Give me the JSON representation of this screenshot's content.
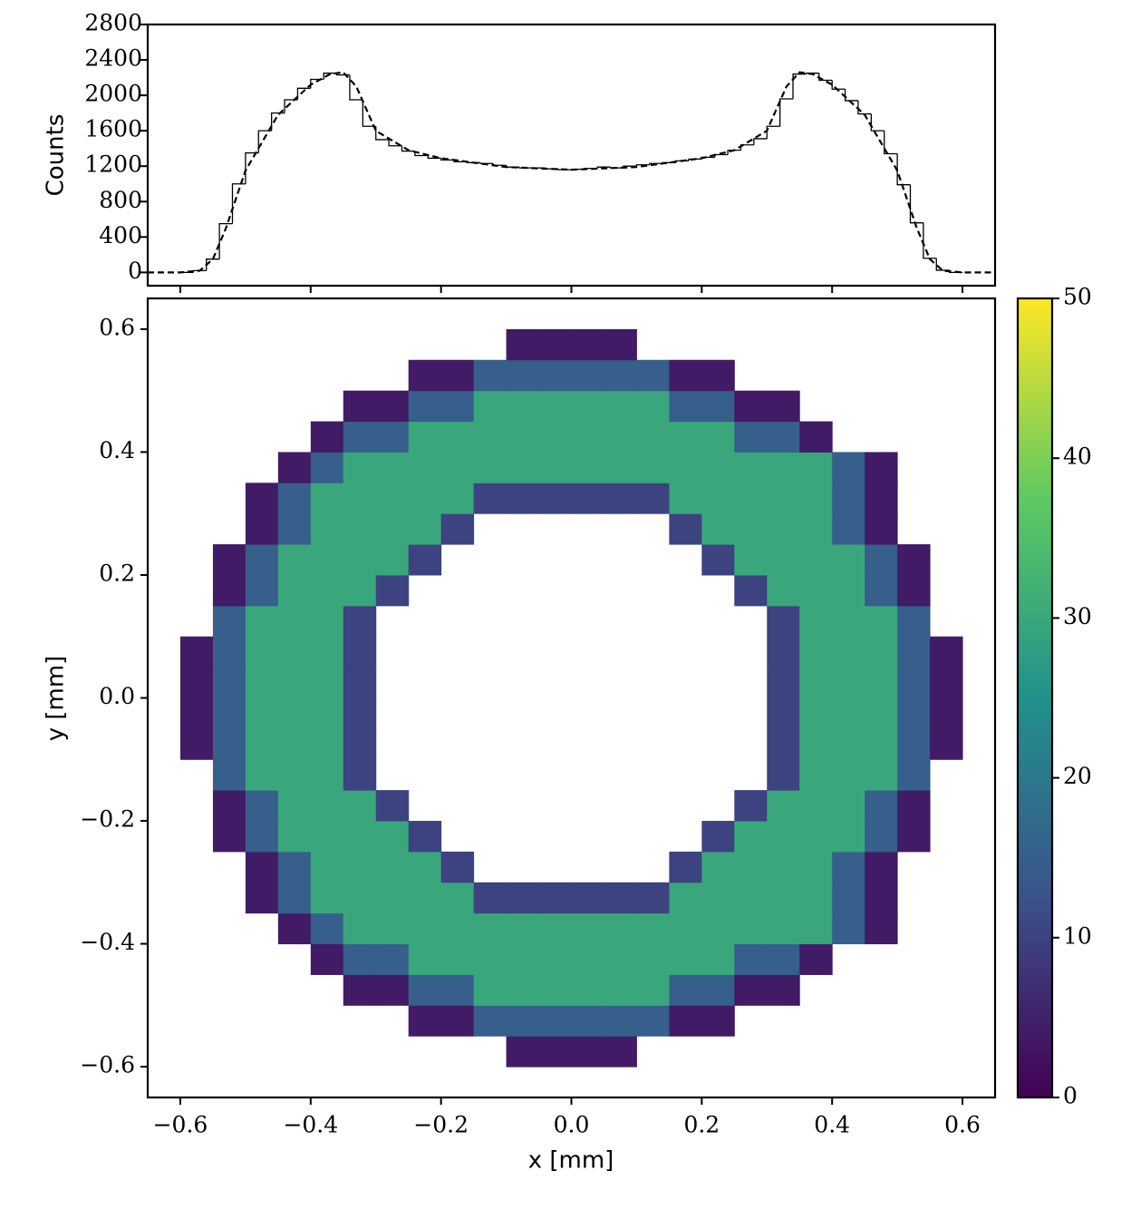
{
  "chart_data": [
    {
      "type": "histogram",
      "ylabel": "Counts",
      "color": "#000000",
      "bins": [
        -0.6,
        -0.58,
        -0.56,
        -0.54,
        -0.52,
        -0.5,
        -0.48,
        -0.46,
        -0.44,
        -0.42,
        -0.4,
        -0.38,
        -0.36,
        -0.34,
        -0.32,
        -0.3,
        -0.28,
        -0.26,
        -0.24,
        -0.22,
        -0.2,
        -0.18,
        -0.16,
        -0.14,
        -0.12,
        -0.1,
        -0.08,
        -0.06,
        -0.04,
        -0.02,
        0,
        0.02,
        0.04,
        0.06,
        0.08,
        0.1,
        0.12,
        0.14,
        0.16,
        0.18,
        0.2,
        0.22,
        0.24,
        0.26,
        0.28,
        0.3,
        0.32,
        0.34,
        0.36,
        0.38,
        0.4,
        0.42,
        0.44,
        0.46,
        0.48,
        0.5,
        0.52,
        0.54,
        0.56,
        0.58,
        0.6
      ],
      "values": [
        0,
        20,
        150,
        550,
        1000,
        1350,
        1600,
        1800,
        1950,
        2080,
        2180,
        2250,
        2230,
        1950,
        1650,
        1500,
        1430,
        1370,
        1320,
        1290,
        1270,
        1250,
        1240,
        1230,
        1210,
        1190,
        1180,
        1180,
        1170,
        1160,
        1165,
        1175,
        1190,
        1180,
        1200,
        1215,
        1230,
        1240,
        1260,
        1280,
        1300,
        1330,
        1380,
        1440,
        1510,
        1650,
        1960,
        2240,
        2250,
        2170,
        2070,
        1940,
        1790,
        1600,
        1340,
        990,
        560,
        160,
        25,
        0
      ],
      "fit": {
        "color": "#000000",
        "style": "dashed",
        "x": [
          -0.65,
          -0.6,
          -0.57,
          -0.55,
          -0.53,
          -0.5,
          -0.45,
          -0.4,
          -0.37,
          -0.35,
          -0.33,
          -0.3,
          -0.25,
          -0.2,
          -0.1,
          0,
          0.1,
          0.2,
          0.25,
          0.3,
          0.33,
          0.35,
          0.37,
          0.4,
          0.45,
          0.5,
          0.53,
          0.55,
          0.57,
          0.6,
          0.65
        ],
        "values": [
          0,
          0,
          20,
          150,
          500,
          1150,
          1780,
          2120,
          2240,
          2260,
          2100,
          1600,
          1380,
          1290,
          1190,
          1160,
          1190,
          1290,
          1380,
          1600,
          2100,
          2260,
          2240,
          2120,
          1780,
          1150,
          500,
          150,
          20,
          0,
          0
        ]
      },
      "xlim": [
        -0.65,
        0.65
      ],
      "ylim": [
        -150,
        2800
      ],
      "yticks": [
        0,
        400,
        800,
        1200,
        1600,
        2000,
        2400,
        2800
      ]
    },
    {
      "type": "heatmap",
      "xlabel": "x [mm]",
      "ylabel": "y [mm]",
      "colormap": "viridis",
      "xbins": [
        -0.65,
        -0.6,
        -0.55,
        -0.5,
        -0.45,
        -0.4,
        -0.35,
        -0.3,
        -0.25,
        -0.2,
        -0.15,
        -0.1,
        -0.05,
        0,
        0.05,
        0.1,
        0.15,
        0.2,
        0.25,
        0.3,
        0.35,
        0.4,
        0.45,
        0.5,
        0.55,
        0.6,
        0.65
      ],
      "ybins": [
        -0.65,
        -0.6,
        -0.55,
        -0.5,
        -0.45,
        -0.4,
        -0.35,
        -0.3,
        -0.25,
        -0.2,
        -0.15,
        -0.1,
        -0.05,
        0,
        0.05,
        0.1,
        0.15,
        0.2,
        0.25,
        0.3,
        0.35,
        0.4,
        0.45,
        0.5,
        0.55,
        0.6,
        0.65
      ],
      "values": [
        [
          0,
          0,
          0,
          0,
          0,
          0,
          0,
          0,
          0,
          0,
          0,
          0,
          0,
          0,
          0,
          0,
          0,
          0,
          0,
          0,
          0,
          0,
          0,
          0,
          0,
          0
        ],
        [
          0,
          0,
          0,
          0,
          0,
          0,
          0,
          0,
          0,
          0,
          0,
          4,
          4,
          4,
          4,
          0,
          0,
          0,
          0,
          0,
          0,
          0,
          0,
          0,
          0,
          0
        ],
        [
          0,
          0,
          0,
          0,
          0,
          0,
          0,
          0,
          4,
          4,
          15,
          15,
          15,
          15,
          15,
          15,
          4,
          4,
          0,
          0,
          0,
          0,
          0,
          0,
          0,
          0
        ],
        [
          0,
          0,
          0,
          0,
          0,
          0,
          4,
          4,
          15,
          15,
          30,
          30,
          30,
          30,
          30,
          30,
          15,
          15,
          4,
          4,
          0,
          0,
          0,
          0,
          0,
          0
        ],
        [
          0,
          0,
          0,
          0,
          0,
          4,
          15,
          15,
          30,
          30,
          30,
          30,
          30,
          30,
          30,
          30,
          30,
          30,
          15,
          15,
          4,
          0,
          0,
          0,
          0,
          0
        ],
        [
          0,
          0,
          0,
          0,
          4,
          15,
          30,
          30,
          30,
          30,
          30,
          30,
          30,
          30,
          30,
          30,
          30,
          30,
          30,
          30,
          30,
          15,
          4,
          0,
          0,
          0
        ],
        [
          0,
          0,
          0,
          4,
          15,
          30,
          30,
          30,
          30,
          30,
          10,
          10,
          10,
          10,
          10,
          10,
          30,
          30,
          30,
          30,
          30,
          15,
          4,
          0,
          0,
          0
        ],
        [
          0,
          0,
          0,
          4,
          15,
          30,
          30,
          30,
          30,
          10,
          0,
          0,
          0,
          0,
          0,
          0,
          10,
          30,
          30,
          30,
          30,
          15,
          4,
          0,
          0,
          0
        ],
        [
          0,
          0,
          4,
          15,
          30,
          30,
          30,
          30,
          10,
          0,
          0,
          0,
          0,
          0,
          0,
          0,
          0,
          10,
          30,
          30,
          30,
          30,
          15,
          4,
          0,
          0
        ],
        [
          0,
          0,
          4,
          15,
          30,
          30,
          30,
          10,
          0,
          0,
          0,
          0,
          0,
          0,
          0,
          0,
          0,
          0,
          10,
          30,
          30,
          30,
          15,
          4,
          0,
          0
        ],
        [
          0,
          0,
          15,
          30,
          30,
          30,
          10,
          0,
          0,
          0,
          0,
          0,
          0,
          0,
          0,
          0,
          0,
          0,
          0,
          10,
          30,
          30,
          30,
          15,
          0,
          0
        ],
        [
          0,
          4,
          15,
          30,
          30,
          30,
          10,
          0,
          0,
          0,
          0,
          0,
          0,
          0,
          0,
          0,
          0,
          0,
          0,
          10,
          30,
          30,
          30,
          15,
          4,
          0
        ],
        [
          0,
          4,
          15,
          30,
          30,
          30,
          10,
          0,
          0,
          0,
          0,
          0,
          0,
          0,
          0,
          0,
          0,
          0,
          0,
          10,
          30,
          30,
          30,
          15,
          4,
          0
        ],
        [
          0,
          4,
          15,
          30,
          30,
          30,
          10,
          0,
          0,
          0,
          0,
          0,
          0,
          0,
          0,
          0,
          0,
          0,
          0,
          10,
          30,
          30,
          30,
          15,
          4,
          0
        ],
        [
          0,
          4,
          15,
          30,
          30,
          30,
          10,
          0,
          0,
          0,
          0,
          0,
          0,
          0,
          0,
          0,
          0,
          0,
          0,
          10,
          30,
          30,
          30,
          15,
          4,
          0
        ],
        [
          0,
          0,
          15,
          30,
          30,
          30,
          10,
          0,
          0,
          0,
          0,
          0,
          0,
          0,
          0,
          0,
          0,
          0,
          0,
          10,
          30,
          30,
          30,
          15,
          0,
          0
        ],
        [
          0,
          0,
          4,
          15,
          30,
          30,
          30,
          10,
          0,
          0,
          0,
          0,
          0,
          0,
          0,
          0,
          0,
          0,
          10,
          30,
          30,
          30,
          15,
          4,
          0,
          0
        ],
        [
          0,
          0,
          4,
          15,
          30,
          30,
          30,
          30,
          10,
          0,
          0,
          0,
          0,
          0,
          0,
          0,
          0,
          10,
          30,
          30,
          30,
          30,
          15,
          4,
          0,
          0
        ],
        [
          0,
          0,
          0,
          4,
          15,
          30,
          30,
          30,
          30,
          10,
          0,
          0,
          0,
          0,
          0,
          0,
          10,
          30,
          30,
          30,
          30,
          15,
          4,
          0,
          0,
          0
        ],
        [
          0,
          0,
          0,
          4,
          15,
          30,
          30,
          30,
          30,
          30,
          10,
          10,
          10,
          10,
          10,
          10,
          30,
          30,
          30,
          30,
          30,
          15,
          4,
          0,
          0,
          0
        ],
        [
          0,
          0,
          0,
          0,
          4,
          15,
          30,
          30,
          30,
          30,
          30,
          30,
          30,
          30,
          30,
          30,
          30,
          30,
          30,
          30,
          30,
          15,
          4,
          0,
          0,
          0
        ],
        [
          0,
          0,
          0,
          0,
          0,
          4,
          15,
          15,
          30,
          30,
          30,
          30,
          30,
          30,
          30,
          30,
          30,
          30,
          15,
          15,
          4,
          0,
          0,
          0,
          0,
          0
        ],
        [
          0,
          0,
          0,
          0,
          0,
          0,
          4,
          4,
          15,
          15,
          30,
          30,
          30,
          30,
          30,
          30,
          15,
          15,
          4,
          4,
          0,
          0,
          0,
          0,
          0,
          0
        ],
        [
          0,
          0,
          0,
          0,
          0,
          0,
          0,
          0,
          4,
          4,
          15,
          15,
          15,
          15,
          15,
          15,
          4,
          4,
          0,
          0,
          0,
          0,
          0,
          0,
          0,
          0
        ],
        [
          0,
          0,
          0,
          0,
          0,
          0,
          0,
          0,
          0,
          0,
          0,
          4,
          4,
          4,
          4,
          0,
          0,
          0,
          0,
          0,
          0,
          0,
          0,
          0,
          0,
          0
        ],
        [
          0,
          0,
          0,
          0,
          0,
          0,
          0,
          0,
          0,
          0,
          0,
          0,
          0,
          0,
          0,
          0,
          0,
          0,
          0,
          0,
          0,
          0,
          0,
          0,
          0,
          0
        ]
      ],
      "colorbar": {
        "lim": [
          0,
          50
        ],
        "ticks": [
          0,
          10,
          20,
          30,
          40,
          50
        ]
      },
      "xlim": [
        -0.65,
        0.65
      ],
      "ylim": [
        -0.65,
        0.65
      ],
      "xticks": [
        {
          "value": -0.6,
          "label": "−0.6"
        },
        {
          "value": -0.4,
          "label": "−0.4"
        },
        {
          "value": -0.2,
          "label": "−0.2"
        },
        {
          "value": 0,
          "label": "0.0"
        },
        {
          "value": 0.2,
          "label": "0.2"
        },
        {
          "value": 0.4,
          "label": "0.4"
        },
        {
          "value": 0.6,
          "label": "0.6"
        }
      ],
      "yticks": [
        {
          "value": -0.6,
          "label": "−0.6"
        },
        {
          "value": -0.4,
          "label": "−0.4"
        },
        {
          "value": -0.2,
          "label": "−0.2"
        },
        {
          "value": 0,
          "label": "0.0"
        },
        {
          "value": 0.2,
          "label": "0.2"
        },
        {
          "value": 0.4,
          "label": "0.4"
        },
        {
          "value": 0.6,
          "label": "0.6"
        }
      ]
    }
  ]
}
